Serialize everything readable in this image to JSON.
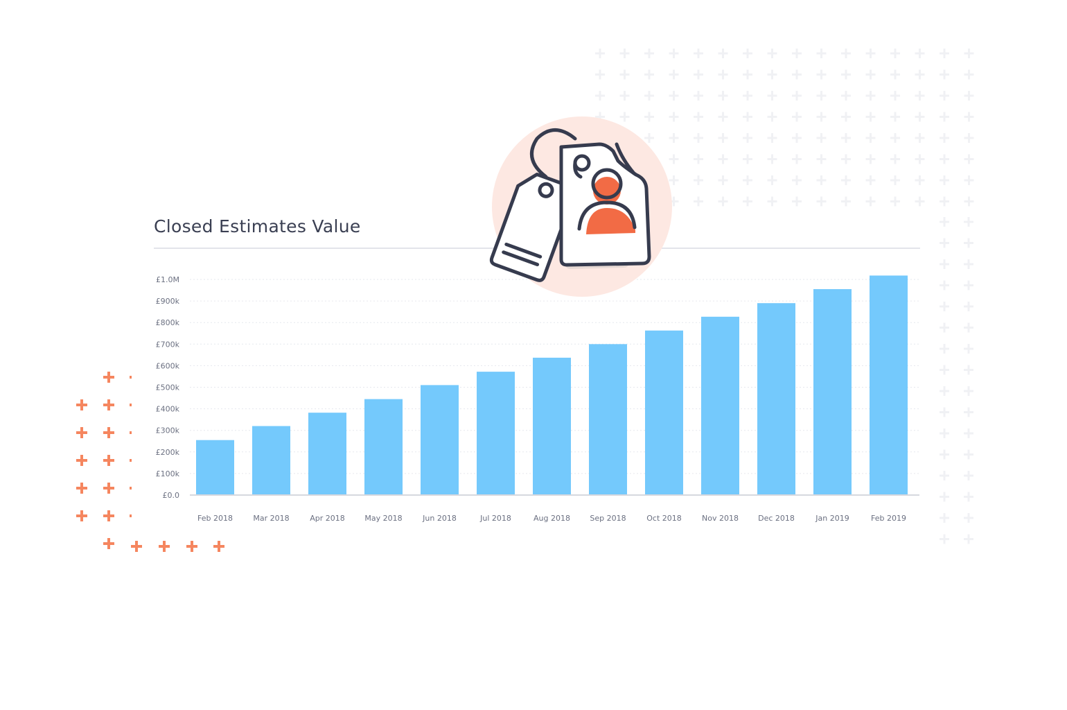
{
  "chart_data": {
    "type": "bar",
    "title": "Closed Estimates Value",
    "xlabel": "",
    "ylabel": "",
    "categories": [
      "Feb 2018",
      "Mar 2018",
      "Apr 2018",
      "May 2018",
      "Jun 2018",
      "Jul 2018",
      "Aug 2018",
      "Sep 2018",
      "Oct 2018",
      "Nov 2018",
      "Dec 2018",
      "Jan 2019",
      "Feb 2019"
    ],
    "values": [
      255000,
      320000,
      382000,
      445000,
      510000,
      572000,
      637000,
      700000,
      763000,
      827000,
      890000,
      955000,
      1018000
    ],
    "yticks": [
      0,
      100000,
      200000,
      300000,
      400000,
      500000,
      600000,
      700000,
      800000,
      900000,
      1000000
    ],
    "ytick_labels": [
      "£0.0",
      "£100k",
      "£200k",
      "£300k",
      "£400k",
      "£500k",
      "£600k",
      "£700k",
      "£800k",
      "£900k",
      "£1.0M"
    ],
    "ylim": [
      0,
      1000000
    ],
    "grid": true,
    "colors": {
      "bar": "#74c9fc",
      "axis": "#d6d8de",
      "grid": "#e6e8ee"
    }
  },
  "illustration": {
    "icon": "price-tags-with-person-icon",
    "colors": {
      "circle": "#fde8e2",
      "stroke": "#363b4e",
      "person": "#f26b45"
    }
  },
  "decoration": {
    "grey_plus_color": "#f0f1f4",
    "orange_plus_color": "#f5865f"
  }
}
